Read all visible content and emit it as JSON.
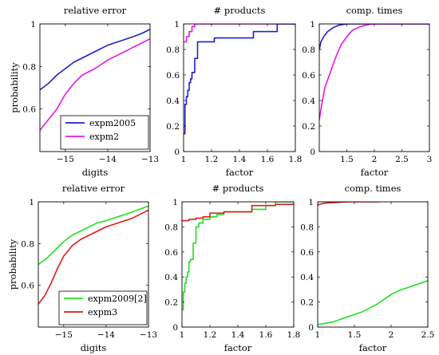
{
  "colors": {
    "blue": "#1f1fd6",
    "magenta": "#e617e6",
    "green": "#22e022",
    "red": "#e01b1b"
  },
  "chart_data": [
    {
      "id": "r1c1",
      "type": "line",
      "title": "relative error",
      "xlabel": "digits",
      "ylabel": "probability",
      "xlim": [
        -15.6,
        -13
      ],
      "ylim": [
        0.4,
        1
      ],
      "xticks": [
        -15,
        -14,
        -13
      ],
      "xtick_labels": [
        "−15",
        "−14",
        "−13"
      ],
      "yticks": [
        0.6,
        0.8,
        1
      ],
      "ytick_labels": [
        "0.6",
        "0.8",
        "1"
      ],
      "legend": "bottom-right",
      "series": [
        {
          "name": "expm2005",
          "color": "blue",
          "x": [
            -15.6,
            -15.4,
            -15.2,
            -15.0,
            -14.8,
            -14.5,
            -14.2,
            -14.0,
            -13.7,
            -13.4,
            -13.2,
            -13.0
          ],
          "y": [
            0.69,
            0.72,
            0.76,
            0.79,
            0.82,
            0.85,
            0.88,
            0.9,
            0.92,
            0.94,
            0.955,
            0.975
          ]
        },
        {
          "name": "expm2",
          "color": "magenta",
          "x": [
            -15.6,
            -15.4,
            -15.2,
            -15.0,
            -14.8,
            -14.6,
            -14.3,
            -14.0,
            -13.7,
            -13.4,
            -13.2,
            -13.0
          ],
          "y": [
            0.5,
            0.55,
            0.6,
            0.67,
            0.72,
            0.76,
            0.79,
            0.83,
            0.86,
            0.89,
            0.91,
            0.93
          ]
        }
      ]
    },
    {
      "id": "r1c2",
      "type": "line",
      "title": "# products",
      "xlabel": "factor",
      "ylabel": "",
      "xlim": [
        1,
        1.8
      ],
      "ylim": [
        0,
        1
      ],
      "xticks": [
        1,
        1.2,
        1.4,
        1.6,
        1.8
      ],
      "xtick_labels": [
        "1",
        "1.2",
        "1.4",
        "1.6",
        "1.8"
      ],
      "yticks": [
        0,
        0.2,
        0.4,
        0.6,
        0.8,
        1
      ],
      "ytick_labels": [
        "0",
        "0.2",
        "0.4",
        "0.6",
        "0.8",
        "1"
      ],
      "series": [
        {
          "name": "",
          "color": "magenta",
          "step": true,
          "x": [
            1.0,
            1.02,
            1.04,
            1.06,
            1.08,
            1.8
          ],
          "y": [
            0.86,
            0.9,
            0.94,
            0.98,
            1.0,
            1.0
          ]
        },
        {
          "name": "",
          "color": "blue",
          "step": true,
          "x": [
            1.0,
            1.01,
            1.02,
            1.03,
            1.04,
            1.05,
            1.06,
            1.08,
            1.1,
            1.22,
            1.5,
            1.67,
            1.8
          ],
          "y": [
            0.14,
            0.37,
            0.43,
            0.48,
            0.54,
            0.57,
            0.62,
            0.73,
            0.86,
            0.89,
            0.94,
            1.0,
            1.0
          ]
        }
      ]
    },
    {
      "id": "r1c3",
      "type": "line",
      "title": "comp. times",
      "xlabel": "factor",
      "ylabel": "",
      "xlim": [
        1,
        3
      ],
      "ylim": [
        0,
        1
      ],
      "xticks": [
        1,
        1.5,
        2,
        2.5,
        3
      ],
      "xtick_labels": [
        "",
        "1.5",
        "2",
        "2.5",
        "3"
      ],
      "yticks": [
        0,
        0.2,
        0.4,
        0.6,
        0.8,
        1
      ],
      "ytick_labels": [
        "0",
        "0.2",
        "0.4",
        "0.6",
        "0.8",
        "1"
      ],
      "series": [
        {
          "name": "",
          "color": "blue",
          "x": [
            1.0,
            1.03,
            1.08,
            1.15,
            1.25,
            1.35,
            1.5,
            1.6,
            3.0
          ],
          "y": [
            0.8,
            0.86,
            0.9,
            0.94,
            0.97,
            0.99,
            1.0,
            1.0,
            1.0
          ]
        },
        {
          "name": "",
          "color": "magenta",
          "x": [
            1.0,
            1.05,
            1.1,
            1.2,
            1.3,
            1.4,
            1.5,
            1.6,
            1.75,
            1.9,
            2.0,
            3.0
          ],
          "y": [
            0.25,
            0.38,
            0.5,
            0.62,
            0.74,
            0.84,
            0.9,
            0.95,
            0.98,
            0.995,
            1.0,
            1.0
          ]
        }
      ]
    },
    {
      "id": "r2c1",
      "type": "line",
      "title": "relative error",
      "xlabel": "digits",
      "ylabel": "probability",
      "xlim": [
        -15.6,
        -13
      ],
      "ylim": [
        0.4,
        1
      ],
      "xticks": [
        -15,
        -14,
        -13
      ],
      "xtick_labels": [
        "−15",
        "−14",
        "−13"
      ],
      "yticks": [
        0.6,
        0.8,
        1
      ],
      "ytick_labels": [
        "0.6",
        "0.8",
        "1"
      ],
      "legend": "bottom-right",
      "series": [
        {
          "name": "expm2009[2]",
          "color": "green",
          "x": [
            -15.6,
            -15.4,
            -15.2,
            -15.0,
            -14.8,
            -14.5,
            -14.2,
            -14.0,
            -13.7,
            -13.4,
            -13.2,
            -13.0
          ],
          "y": [
            0.7,
            0.73,
            0.77,
            0.81,
            0.84,
            0.87,
            0.9,
            0.91,
            0.93,
            0.95,
            0.965,
            0.98
          ]
        },
        {
          "name": "expm3",
          "color": "red",
          "x": [
            -15.6,
            -15.45,
            -15.3,
            -15.15,
            -15.0,
            -14.8,
            -14.6,
            -14.3,
            -14.0,
            -13.7,
            -13.4,
            -13.2,
            -13.0
          ],
          "y": [
            0.51,
            0.55,
            0.61,
            0.68,
            0.74,
            0.79,
            0.82,
            0.85,
            0.88,
            0.9,
            0.92,
            0.94,
            0.96
          ]
        }
      ]
    },
    {
      "id": "r2c2",
      "type": "line",
      "title": "# products",
      "xlabel": "factor",
      "ylabel": "",
      "xlim": [
        1,
        1.8
      ],
      "ylim": [
        0,
        1
      ],
      "xticks": [
        1,
        1.2,
        1.4,
        1.6,
        1.8
      ],
      "xtick_labels": [
        "1",
        "1.2",
        "1.4",
        "1.6",
        "1.8"
      ],
      "yticks": [
        0,
        0.2,
        0.4,
        0.6,
        0.8,
        1
      ],
      "ytick_labels": [
        "0",
        "0.2",
        "0.4",
        "0.6",
        "0.8",
        "1"
      ],
      "series": [
        {
          "name": "",
          "color": "green",
          "step": true,
          "x": [
            1.0,
            1.01,
            1.02,
            1.03,
            1.04,
            1.05,
            1.06,
            1.08,
            1.1,
            1.12,
            1.15,
            1.2,
            1.25,
            1.3,
            1.5,
            1.6,
            1.67,
            1.8
          ],
          "y": [
            0.14,
            0.28,
            0.35,
            0.4,
            0.44,
            0.52,
            0.54,
            0.67,
            0.8,
            0.83,
            0.86,
            0.88,
            0.9,
            0.92,
            0.94,
            0.97,
            1.0,
            1.0
          ]
        },
        {
          "name": "",
          "color": "red",
          "step": true,
          "x": [
            1.0,
            1.05,
            1.1,
            1.15,
            1.2,
            1.3,
            1.5,
            1.67,
            1.8
          ],
          "y": [
            0.85,
            0.86,
            0.87,
            0.88,
            0.91,
            0.92,
            0.97,
            0.98,
            0.98
          ]
        }
      ]
    },
    {
      "id": "r2c3",
      "type": "line",
      "title": "comp. times",
      "xlabel": "factor",
      "ylabel": "",
      "xlim": [
        1,
        2.5
      ],
      "ylim": [
        0,
        1
      ],
      "xticks": [
        1,
        1.5,
        2,
        2.5
      ],
      "xtick_labels": [
        "1",
        "1.5",
        "2",
        "2.5"
      ],
      "yticks": [
        0,
        0.2,
        0.4,
        0.6,
        0.8,
        1
      ],
      "ytick_labels": [
        "0",
        "0.2",
        "0.4",
        "0.6",
        "0.8",
        "1"
      ],
      "series": [
        {
          "name": "",
          "color": "red",
          "x": [
            1.0,
            1.02,
            1.1,
            1.25,
            1.4,
            1.6,
            1.8,
            1.85
          ],
          "y": [
            0.97,
            0.98,
            0.99,
            0.995,
            1.0,
            1.0,
            1.0,
            1.0
          ]
        },
        {
          "name": "",
          "color": "green",
          "x": [
            1.0,
            1.1,
            1.2,
            1.3,
            1.4,
            1.5,
            1.6,
            1.7,
            1.8,
            1.9,
            2.0,
            2.1,
            2.2,
            2.3,
            2.4,
            2.5
          ],
          "y": [
            0.02,
            0.03,
            0.04,
            0.06,
            0.08,
            0.1,
            0.12,
            0.15,
            0.18,
            0.22,
            0.26,
            0.29,
            0.31,
            0.33,
            0.35,
            0.37
          ]
        }
      ]
    }
  ]
}
